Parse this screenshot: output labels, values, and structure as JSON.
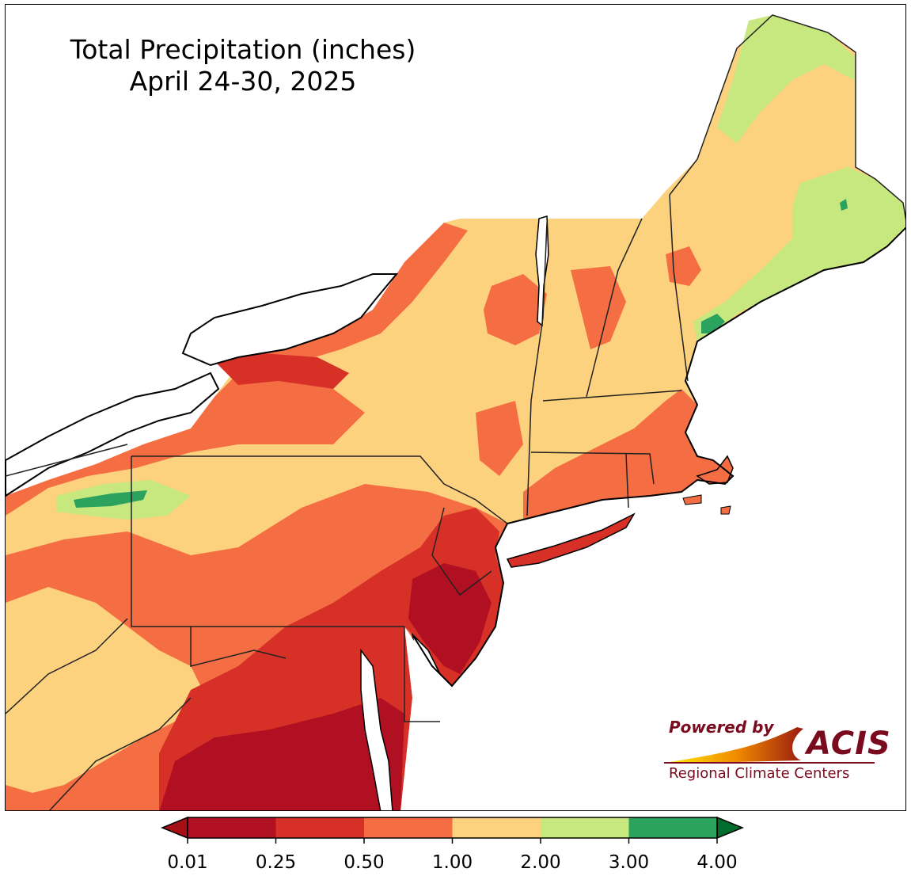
{
  "title": {
    "line1": "Total Precipitation (inches)",
    "line2": "April 24-30, 2025"
  },
  "legend": {
    "bins": [
      {
        "min": 0.01,
        "max": 0.25,
        "color": "#b10f22"
      },
      {
        "min": 0.25,
        "max": 0.5,
        "color": "#d73027"
      },
      {
        "min": 0.5,
        "max": 1.0,
        "color": "#f46d43"
      },
      {
        "min": 1.0,
        "max": 2.0,
        "color": "#fdd27e"
      },
      {
        "min": 2.0,
        "max": 3.0,
        "color": "#c7e77f"
      },
      {
        "min": 3.0,
        "max": 4.0,
        "color": "#2ca25f"
      }
    ],
    "under_color": "#a50f15",
    "over_color": "#006d2c",
    "tick_labels": [
      "0.01",
      "0.25",
      "0.50",
      "1.00",
      "2.00",
      "3.00",
      "4.00"
    ]
  },
  "logo": {
    "powered_by": "Powered by",
    "brand": "ACIS",
    "subtitle": "Regional Climate Centers"
  }
}
